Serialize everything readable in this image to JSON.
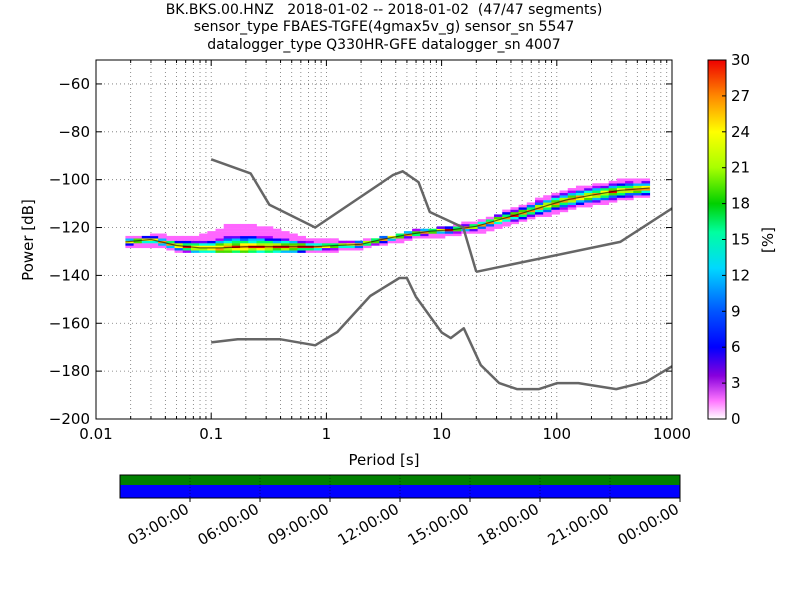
{
  "title_lines": [
    "BK.BKS.00.HNZ   2018-01-02 -- 2018-01-02  (47/47 segments)",
    "sensor_type FBAES-TGFE(4gmax5v_g) sensor_sn 5547",
    "datalogger_type Q330HR-GFE datalogger_sn 4007"
  ],
  "chart_data": {
    "type": "heatmap",
    "description_of_plot": "probabilistic power spectral density",
    "xlabel": "Period [s]",
    "ylabel": "Power [dB]",
    "xscale": "log",
    "xlim": [
      0.01,
      1000
    ],
    "ylim": [
      -200,
      -50
    ],
    "xticks": [
      0.01,
      0.1,
      1,
      10,
      100,
      1000
    ],
    "xtick_labels": [
      "0.01",
      "0.1",
      "1",
      "10",
      "100",
      "1000"
    ],
    "yticks": [
      -200,
      -180,
      -160,
      -140,
      -120,
      -100,
      -80,
      -60
    ],
    "ytick_labels": [
      "−200",
      "−180",
      "−160",
      "−140",
      "−120",
      "−100",
      "−80",
      "−60"
    ],
    "grid": true,
    "colorbar": {
      "label": "[%]",
      "range": [
        0,
        30
      ],
      "ticks": [
        0,
        3,
        6,
        9,
        12,
        15,
        18,
        21,
        24,
        27,
        30
      ],
      "tick_labels": [
        "0",
        "3",
        "6",
        "9",
        "12",
        "15",
        "18",
        "21",
        "24",
        "27",
        "30"
      ],
      "colormap": "pqlx"
    },
    "noise_models": {
      "high": {
        "periods": [
          0.1,
          0.22,
          0.32,
          0.8,
          3.8,
          4.6,
          6.3,
          7.9,
          15.4,
          20
        ],
        "values": [
          -91.5,
          -97.4,
          -110.5,
          -120,
          -98,
          -96.5,
          -101,
          -113.5,
          -120,
          -138.5
        ],
        "high_tail_periods": [
          20,
          354.8,
          1000
        ],
        "high_tail_values": [
          -138.5,
          -126,
          -112
        ],
        "color": "#666666"
      },
      "low": {
        "periods": [
          0.1,
          0.17,
          0.4,
          0.8,
          1.24,
          2.4,
          4.3,
          5,
          6,
          10,
          12,
          15.6,
          21.9,
          31.6,
          45,
          70,
          101,
          154,
          328,
          600,
          1000
        ],
        "values": [
          -168,
          -166.7,
          -166.7,
          -169.2,
          -163.7,
          -148.6,
          -141.1,
          -141.1,
          -149,
          -163.8,
          -166.2,
          -162.1,
          -177.5,
          -185,
          -187.5,
          -187.5,
          -185,
          -185,
          -187.5,
          -184.4,
          -178
        ],
        "color": "#666666"
      }
    },
    "psd_mode": {
      "periods": [
        0.018,
        0.03,
        0.05,
        0.08,
        0.12,
        0.2,
        0.3,
        0.5,
        0.8,
        1.2,
        2,
        3,
        5,
        8,
        12,
        20,
        30,
        50,
        80,
        120,
        200,
        350,
        640
      ],
      "values": [
        -126,
        -125,
        -127.5,
        -128.5,
        -128.5,
        -128,
        -128,
        -128,
        -128,
        -127.5,
        -127,
        -125,
        -123,
        -121.5,
        -121,
        -119.5,
        -117,
        -114,
        -111,
        -108.5,
        -106.5,
        -104.5,
        -103.5
      ]
    },
    "psd_bands": [
      {
        "periods": [
          0.018,
          0.035,
          0.06,
          0.1,
          0.15,
          0.25,
          0.4,
          0.7,
          1.2,
          2,
          3.5,
          6,
          10,
          16,
          25,
          40,
          70,
          120,
          200,
          350,
          640
        ],
        "low": [
          -128,
          -127,
          -130,
          -130,
          -130,
          -130,
          -130,
          -129.5,
          -129,
          -128,
          -126,
          -124,
          -123,
          -122,
          -121,
          -118,
          -115,
          -112,
          -110,
          -108,
          -106
        ],
        "high": [
          -125,
          -123.5,
          -125,
          -123,
          -119,
          -120,
          -122,
          -125,
          -126,
          -126,
          -124.5,
          -122,
          -120.5,
          -119,
          -117,
          -113,
          -109,
          -105,
          -103,
          -101,
          -100
        ]
      }
    ]
  },
  "timeline": {
    "tick_labels": [
      "03:00:00",
      "06:00:00",
      "09:00:00",
      "12:00:00",
      "15:00:00",
      "18:00:00",
      "21:00:00",
      "00:00:00"
    ],
    "upper_bar_color": "#008000",
    "lower_bar_color": "#0000ff"
  }
}
